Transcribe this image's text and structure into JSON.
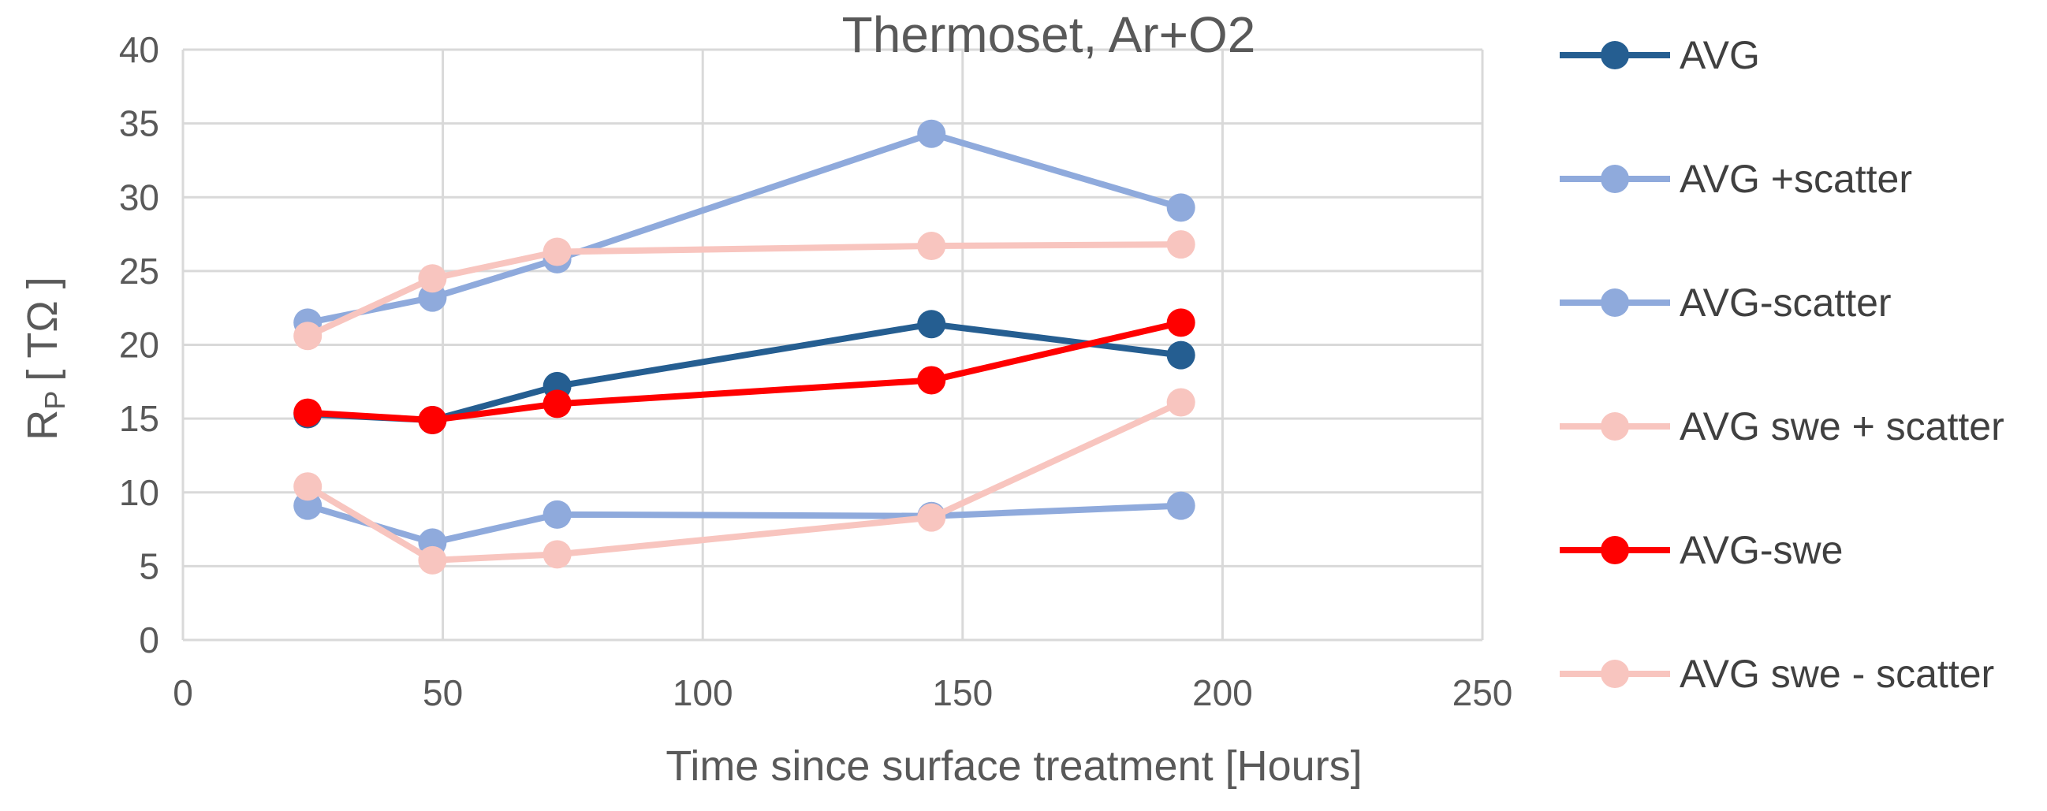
{
  "chart_data": {
    "type": "line",
    "title": "Thermoset, Ar+O2",
    "xlabel": "Time since surface treatment [Hours]",
    "ylabel": "R",
    "ylabel_subscript": "P",
    "ylabel_unit": "[ TΩ ]",
    "xlim": [
      0,
      250
    ],
    "ylim": [
      0,
      40
    ],
    "xticks": [
      "0",
      "50",
      "100",
      "150",
      "200",
      "250"
    ],
    "yticks": [
      "0",
      "5",
      "10",
      "15",
      "20",
      "25",
      "30",
      "35",
      "40"
    ],
    "grid": true,
    "legend_position": "right",
    "x": [
      24,
      48,
      72,
      144,
      192
    ],
    "series": [
      {
        "name": "AVG",
        "color": "#255e91",
        "values": [
          15.3,
          14.9,
          17.2,
          21.4,
          19.3
        ]
      },
      {
        "name": "AVG +scatter",
        "color": "#8faadc",
        "values": [
          21.5,
          23.2,
          25.8,
          34.3,
          29.3
        ]
      },
      {
        "name": "AVG-scatter",
        "color": "#8faadc",
        "values": [
          9.1,
          6.6,
          8.5,
          8.4,
          9.1
        ]
      },
      {
        "name": "AVG swe + scatter",
        "color": "#f8c5bf",
        "values": [
          20.6,
          24.5,
          26.3,
          26.7,
          26.8
        ]
      },
      {
        "name": "AVG-swe",
        "color": "#ff0000",
        "values": [
          15.4,
          14.9,
          16.0,
          17.6,
          21.5
        ]
      },
      {
        "name": "AVG swe - scatter",
        "color": "#f8c5bf",
        "values": [
          10.4,
          5.4,
          5.8,
          8.3,
          16.1
        ]
      }
    ]
  }
}
